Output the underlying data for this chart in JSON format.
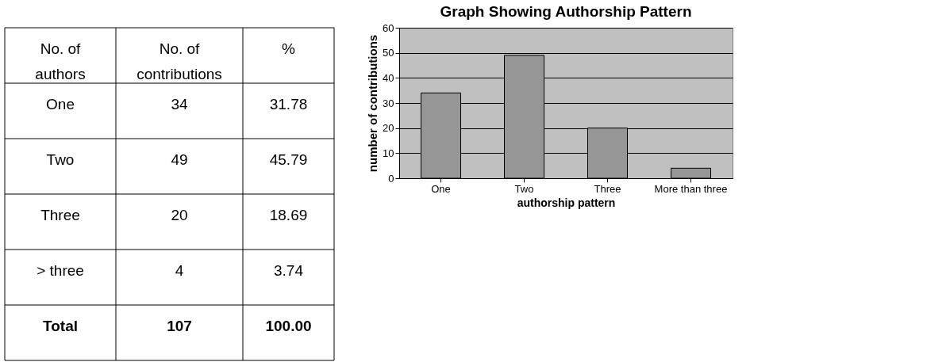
{
  "chart_data": [
    {
      "type": "other",
      "annotations": [
        "No. of authors",
        "No. of contributions",
        "%",
        "One",
        "34",
        "31.78",
        "Two",
        "49",
        "45.79",
        "Three",
        "20",
        "18.69",
        "> three",
        "4",
        "3.74",
        "Total",
        "107",
        "100.00"
      ]
    },
    {
      "type": "bar",
      "title": "Graph Showing Authorship Pattern",
      "xlabel": "authorship pattern",
      "ylabel": "number of contributions",
      "categories": [
        "One",
        "Two",
        "Three",
        "More than three"
      ],
      "values": [
        34,
        49,
        20,
        4
      ],
      "color": "#969696",
      "ylim": [
        0,
        60
      ],
      "yticks": [
        0,
        10,
        20,
        30,
        40,
        50,
        60
      ],
      "grid": "y",
      "legend": false
    }
  ]
}
